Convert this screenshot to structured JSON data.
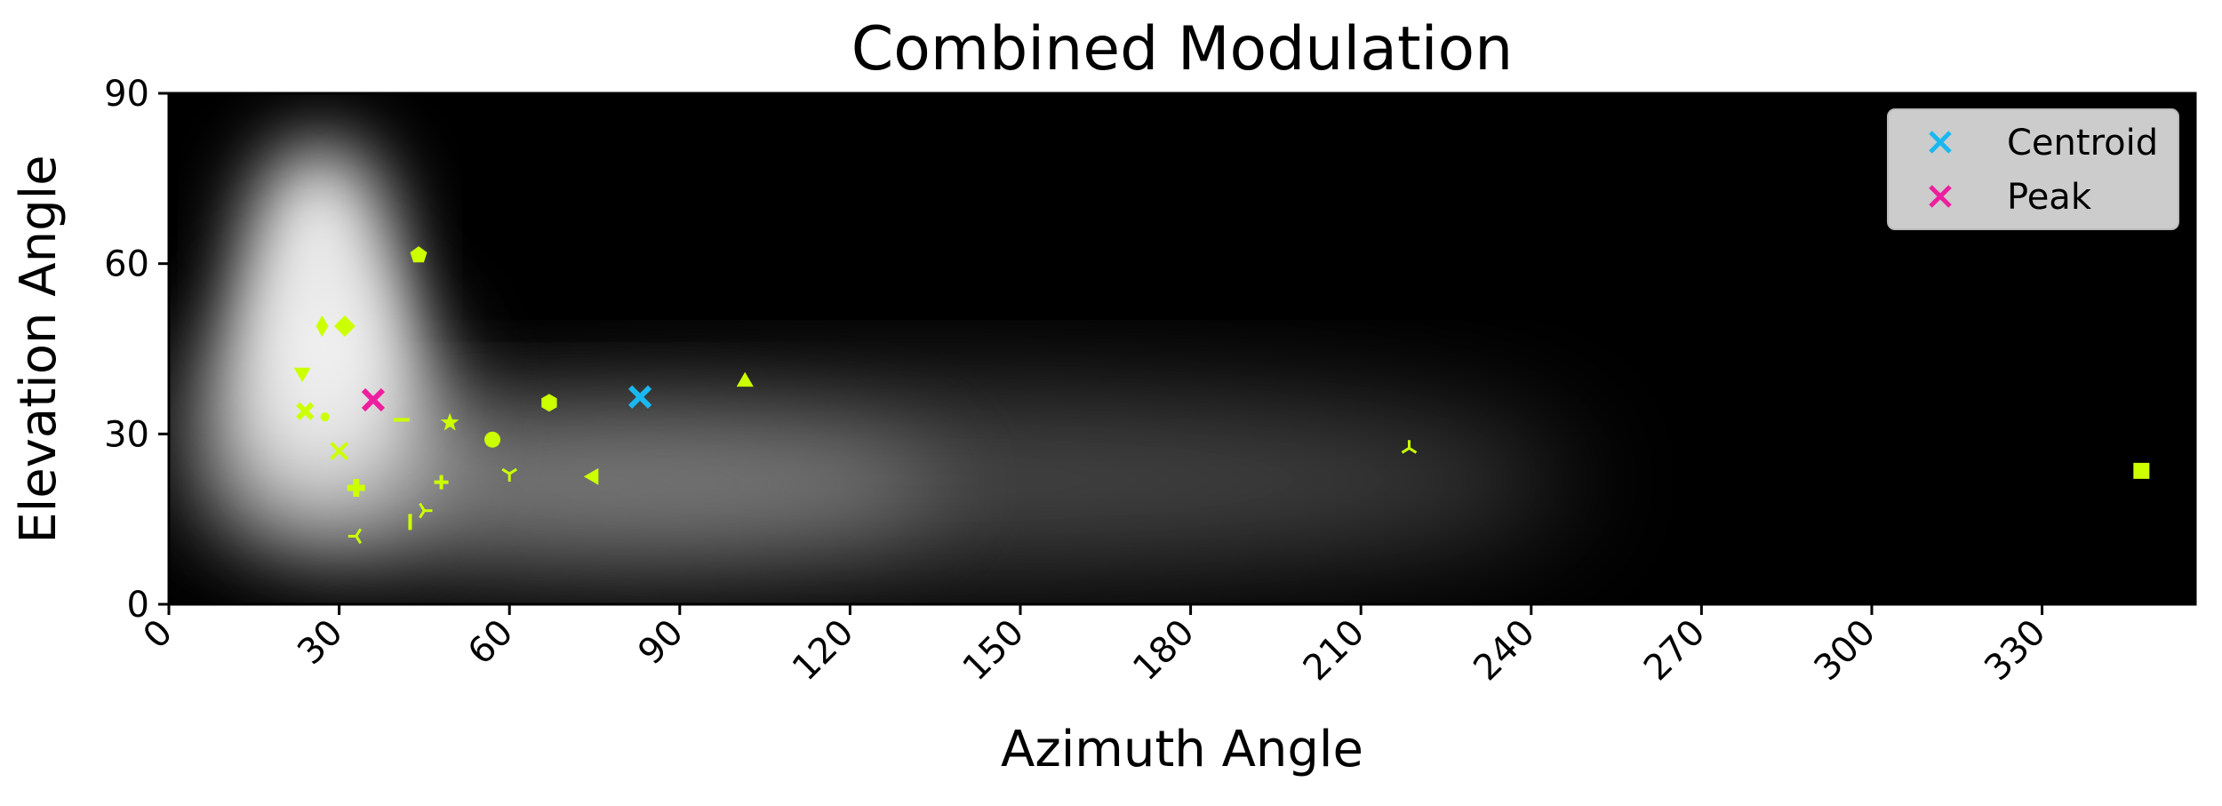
{
  "chart_data": {
    "type": "heatmap",
    "title": "Combined Modulation",
    "xlabel": "Azimuth Angle",
    "ylabel": "Elevation Angle",
    "xlim": [
      0,
      357
    ],
    "ylim": [
      0,
      90
    ],
    "xticks": [
      0,
      30,
      60,
      90,
      120,
      150,
      180,
      210,
      240,
      270,
      300,
      330
    ],
    "yticks": [
      0,
      30,
      60,
      90
    ],
    "tick_rotation_x": 45,
    "colormap": "grayscale",
    "grid": false,
    "legend_position": "top-right",
    "heatmap_description": "bright lobe near azimuth 25, elevation 35-70 with a fading ridge along elevation ~25 extending to azimuth ~230",
    "marker_color": "#ccff00",
    "points": [
      {
        "x": 44,
        "y": 61.5,
        "marker": "pentagon"
      },
      {
        "x": 27,
        "y": 49,
        "marker": "thin-diamond"
      },
      {
        "x": 31,
        "y": 49,
        "marker": "diamond"
      },
      {
        "x": 23.5,
        "y": 40.5,
        "marker": "triangle-down"
      },
      {
        "x": 24,
        "y": 34,
        "marker": "x-filled"
      },
      {
        "x": 27.5,
        "y": 33,
        "marker": "point"
      },
      {
        "x": 41,
        "y": 32.5,
        "marker": "hline"
      },
      {
        "x": 49.5,
        "y": 32,
        "marker": "star"
      },
      {
        "x": 57,
        "y": 29,
        "marker": "circle"
      },
      {
        "x": 67,
        "y": 35.5,
        "marker": "hexagon"
      },
      {
        "x": 101.5,
        "y": 39.5,
        "marker": "triangle-up"
      },
      {
        "x": 30,
        "y": 27,
        "marker": "x"
      },
      {
        "x": 33,
        "y": 20.5,
        "marker": "plus-filled"
      },
      {
        "x": 48,
        "y": 21.5,
        "marker": "plus"
      },
      {
        "x": 60,
        "y": 23,
        "marker": "tri-down"
      },
      {
        "x": 74.5,
        "y": 22.5,
        "marker": "triangle-left"
      },
      {
        "x": 45,
        "y": 16.5,
        "marker": "tri-right"
      },
      {
        "x": 42.5,
        "y": 14.5,
        "marker": "vline"
      },
      {
        "x": 33,
        "y": 12,
        "marker": "tri-left"
      },
      {
        "x": 218.5,
        "y": 27.5,
        "marker": "tri-up"
      },
      {
        "x": 347.5,
        "y": 23.5,
        "marker": "square"
      }
    ],
    "series": [
      {
        "name": "Centroid",
        "x": 83,
        "y": 36.5,
        "marker": "x",
        "color": "#1ab8f0"
      },
      {
        "name": "Peak",
        "x": 36,
        "y": 36,
        "marker": "x",
        "color": "#ee1f9e"
      }
    ]
  }
}
